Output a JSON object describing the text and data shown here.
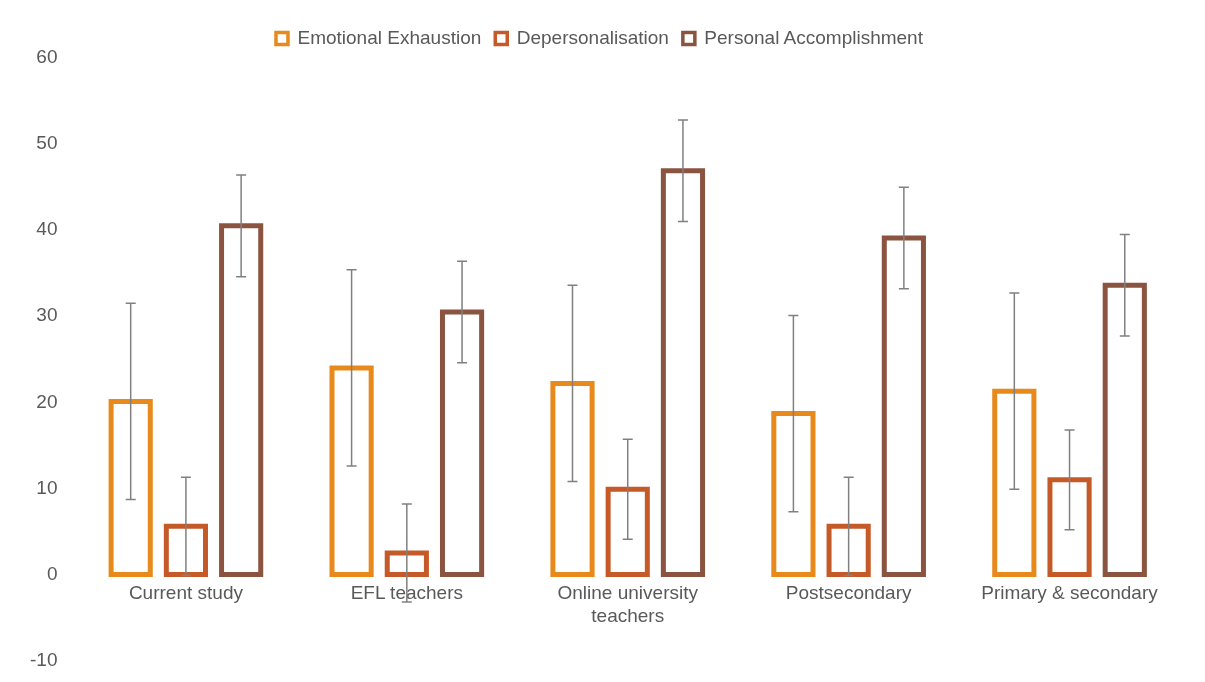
{
  "chart_data": {
    "type": "bar",
    "categories": [
      "Current study",
      "EFL teachers",
      "Online university teachers",
      "Postsecondary",
      "Primary & secondary"
    ],
    "series": [
      {
        "name": "Emotional Exhaustion",
        "color": "#e8891b",
        "values": [
          20.1,
          24.0,
          22.2,
          18.7,
          21.3
        ],
        "errors": [
          11.4,
          11.4,
          11.4,
          11.4,
          11.4
        ]
      },
      {
        "name": "Depersonalisation",
        "color": "#c55a28",
        "values": [
          5.6,
          2.5,
          9.9,
          5.6,
          11.0
        ],
        "errors": [
          5.7,
          5.7,
          5.8,
          5.7,
          5.8
        ]
      },
      {
        "name": "Personal Accomplishment",
        "color": "#8b5440",
        "values": [
          40.5,
          30.5,
          46.9,
          39.1,
          33.6
        ],
        "errors": [
          5.9,
          5.9,
          5.9,
          5.9,
          5.9
        ]
      }
    ],
    "ylim": [
      -10,
      60
    ],
    "yticks": [
      -10,
      0,
      10,
      20,
      30,
      40,
      50,
      60
    ],
    "grid": false,
    "legend": "top"
  }
}
